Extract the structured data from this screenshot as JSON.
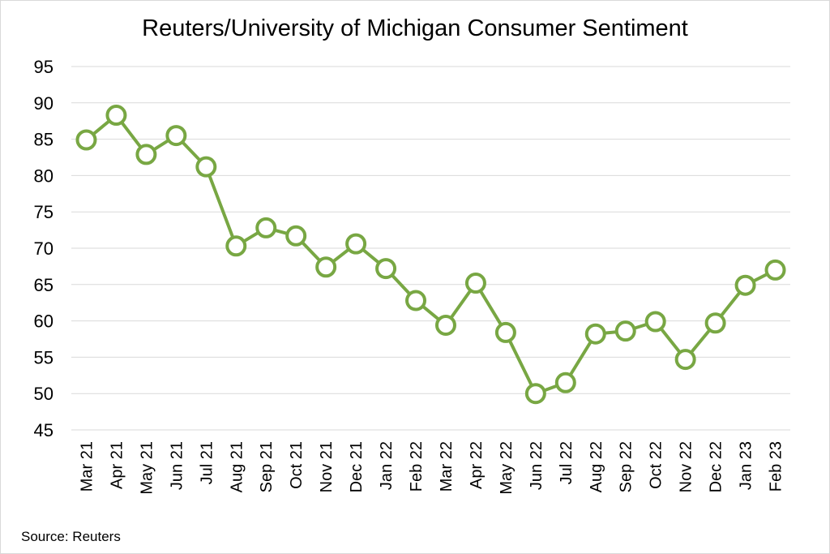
{
  "chart_data": {
    "type": "line",
    "title": "Reuters/University of Michigan Consumer Sentiment",
    "xlabel": "",
    "ylabel": "",
    "ylim": [
      45,
      95
    ],
    "yticks": [
      "45",
      "50",
      "55",
      "60",
      "65",
      "70",
      "75",
      "80",
      "85",
      "90",
      "95"
    ],
    "grid": true,
    "legend": "none",
    "categories": [
      "Mar 21",
      "Apr 21",
      "May 21",
      "Jun 21",
      "Jul 21",
      "Aug 21",
      "Sep 21",
      "Oct 21",
      "Nov 21",
      "Dec 21",
      "Jan 22",
      "Feb 22",
      "Mar 22",
      "Apr 22",
      "May 22",
      "Jun 22",
      "Jul 22",
      "Aug 22",
      "Sep 22",
      "Oct 22",
      "Nov 22",
      "Dec 22",
      "Jan 23",
      "Feb 23"
    ],
    "series": [
      {
        "values": [
          84.9,
          88.3,
          82.9,
          85.5,
          81.2,
          70.3,
          72.8,
          71.7,
          67.4,
          70.6,
          67.2,
          62.8,
          59.4,
          65.2,
          58.4,
          50.0,
          51.5,
          58.2,
          58.6,
          59.9,
          54.7,
          59.7,
          64.9,
          67.0
        ],
        "color": "#78a743"
      }
    ],
    "source": "Source: Reuters"
  }
}
